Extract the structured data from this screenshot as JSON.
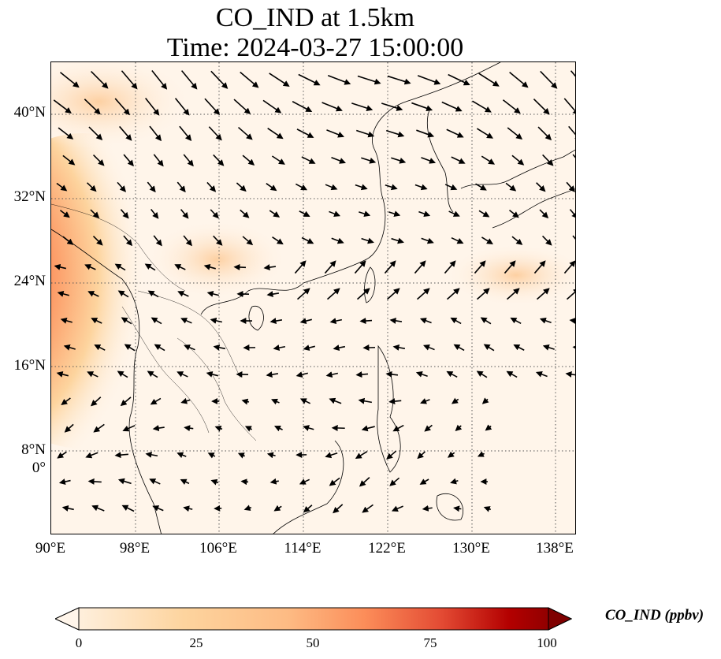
{
  "title": {
    "line1": "CO_IND at 1.5km",
    "line2": "Time: 2024-03-27 15:00:00"
  },
  "map": {
    "projection": "PlateCarree",
    "lon_range": [
      90,
      140
    ],
    "lat_range": [
      0,
      45
    ],
    "gridlines": "dotted",
    "x_ticks": [
      "90°E",
      "98°E",
      "106°E",
      "114°E",
      "122°E",
      "130°E",
      "138°E"
    ],
    "y_ticks": [
      "0°",
      "8°N",
      "16°N",
      "24°N",
      "32°N",
      "40°N"
    ],
    "features": [
      "coastlines",
      "country borders"
    ],
    "overlay": "wind vectors (quiver)"
  },
  "colorbar": {
    "label": "CO_IND (ppbv)",
    "colormap": "OrRd",
    "ticks": [
      "0",
      "25",
      "50",
      "75",
      "100"
    ],
    "range": [
      0,
      100
    ],
    "extend": "both"
  },
  "colors": {
    "low": "#fff5ea",
    "mid": "#fdbb84",
    "high": "#7f0000"
  }
}
